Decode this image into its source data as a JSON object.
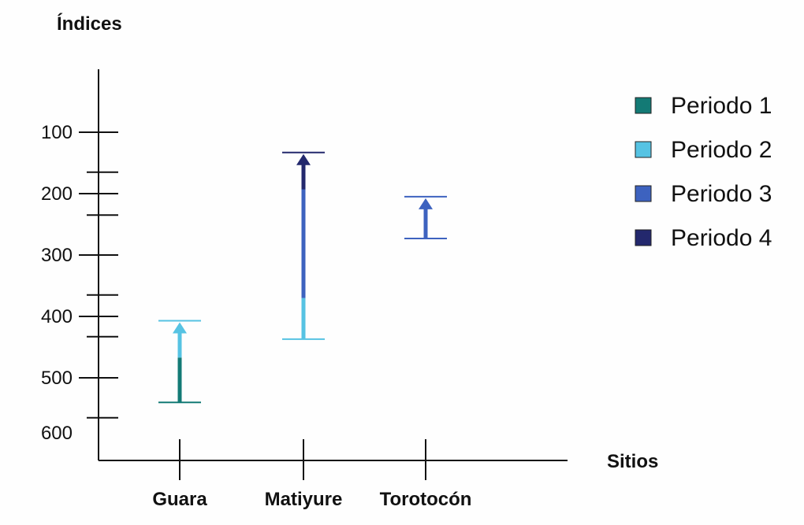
{
  "chart_data": {
    "type": "range-arrow",
    "ylabel": "Índices",
    "xlabel": "Sitios",
    "y_inverted": true,
    "ylim": [
      0,
      600
    ],
    "y_ticks": [
      100,
      200,
      300,
      400,
      500,
      600
    ],
    "y_minor_ticks": [
      165,
      235,
      365,
      433,
      565
    ],
    "categories": [
      "Guara",
      "Matiyure",
      "Torotocón"
    ],
    "legend": [
      {
        "name": "Periodo 1",
        "color": "#137a75"
      },
      {
        "name": "Periodo 2",
        "color": "#56c3e3"
      },
      {
        "name": "Periodo 3",
        "color": "#3d62bf"
      },
      {
        "name": "Periodo 4",
        "color": "#23286d"
      }
    ],
    "sites": [
      {
        "name": "Guara",
        "start": 540,
        "end": 407,
        "start_color": "#137a75",
        "end_color": "#56c3e3",
        "segments": [
          {
            "period": "Periodo 1",
            "from": 540,
            "to": 467
          },
          {
            "period": "Periodo 2",
            "from": 467,
            "to": 407
          }
        ]
      },
      {
        "name": "Matiyure",
        "start": 437,
        "end": 133,
        "start_color": "#56c3e3",
        "end_color": "#23286d",
        "segments": [
          {
            "period": "Periodo 2",
            "from": 437,
            "to": 370
          },
          {
            "period": "Periodo 3",
            "from": 370,
            "to": 193
          },
          {
            "period": "Periodo 4",
            "from": 193,
            "to": 133
          }
        ]
      },
      {
        "name": "Torotocón",
        "start": 273,
        "end": 205,
        "start_color": "#3d62bf",
        "end_color": "#3d62bf",
        "segments": [
          {
            "period": "Periodo 3",
            "from": 273,
            "to": 205
          }
        ]
      }
    ]
  }
}
